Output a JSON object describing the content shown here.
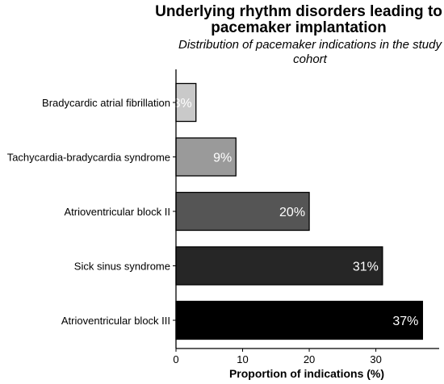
{
  "chart_data": {
    "type": "bar",
    "orientation": "horizontal",
    "title": "Underlying rhythm disorders leading to pacemaker implantation",
    "subtitle": "Distribution of pacemaker indications in the study cohort",
    "xlabel": "Proportion of indications (%)",
    "ylabel": "",
    "categories": [
      "Bradycardic atrial fibrillation",
      "Tachycardia-bradycardia syndrome",
      "Atrioventricular block II",
      "Sick sinus syndrome",
      "Atrioventricular block III"
    ],
    "values": [
      3,
      9,
      20,
      31,
      37
    ],
    "value_labels": [
      "3%",
      "9%",
      "20%",
      "31%",
      "37%"
    ],
    "bar_colors": [
      "#c9c9c9",
      "#9a9a9a",
      "#555555",
      "#262626",
      "#000000"
    ],
    "xlim": [
      0,
      39.5
    ],
    "xticks": [
      "0",
      "10",
      "20",
      "30"
    ],
    "grid": false,
    "legend": "none"
  }
}
